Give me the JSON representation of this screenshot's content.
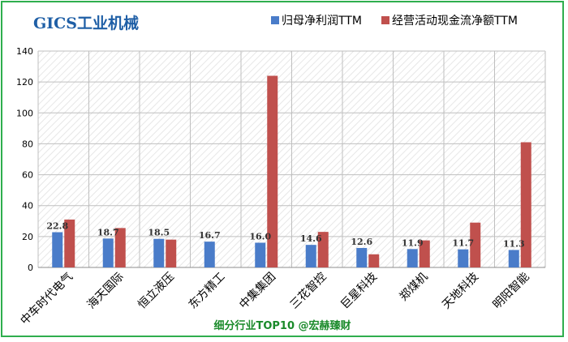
{
  "colors": {
    "border": "#2fae4e",
    "title": "#1f5fa6",
    "footer": "#1a8a2a",
    "series_blue": "#4a7cc9",
    "series_red": "#c0504d",
    "grid": "#bfbfbf",
    "hatch": "#e7e7e7"
  },
  "chart_data": {
    "type": "bar",
    "title": "GICS工业机械",
    "footer": "细分行业TOP10 @宏赫臻财",
    "categories": [
      "中车时代电气",
      "海天国际",
      "恒立液压",
      "东方精工",
      "中集集团",
      "三花智控",
      "巨星科技",
      "郑煤机",
      "天地科技",
      "明阳智能"
    ],
    "series": [
      {
        "name": "归母净利润TTM",
        "values": [
          22.8,
          18.7,
          18.5,
          16.7,
          16.0,
          14.6,
          12.6,
          11.9,
          11.7,
          11.3
        ],
        "labels": [
          "22.8",
          "18.7",
          "18.5",
          "16.7",
          "16.0",
          "14.6",
          "12.6",
          "11.9",
          "11.7",
          "11.3"
        ]
      },
      {
        "name": "经营活动现金流净额TTM",
        "values": [
          31,
          25.5,
          18,
          0,
          124,
          23,
          8.5,
          17.5,
          29,
          81
        ]
      }
    ],
    "ylim": [
      0,
      140
    ],
    "yticks": [
      "0",
      "20",
      "40",
      "60",
      "80",
      "100",
      "120",
      "140"
    ],
    "grid": true,
    "legend": "top-right"
  }
}
